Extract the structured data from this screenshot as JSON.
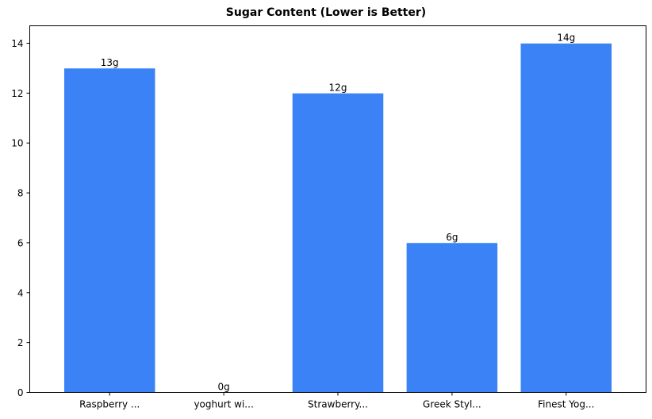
{
  "chart_data": {
    "type": "bar",
    "title": "Sugar Content (Lower is Better)",
    "xlabel": "",
    "ylabel": "",
    "categories": [
      "Raspberry ...",
      "yoghurt wi...",
      "Strawberry...",
      "Greek Styl...",
      "Finest Yog..."
    ],
    "values": [
      13,
      0,
      12,
      6,
      14
    ],
    "value_labels": [
      "13g",
      "0g",
      "12g",
      "6g",
      "14g"
    ],
    "ylim": [
      0,
      14.7
    ],
    "yticks": [
      0,
      2,
      4,
      6,
      8,
      10,
      12,
      14
    ],
    "grid": false,
    "legend": null,
    "bar_color": "#3b82f6"
  }
}
